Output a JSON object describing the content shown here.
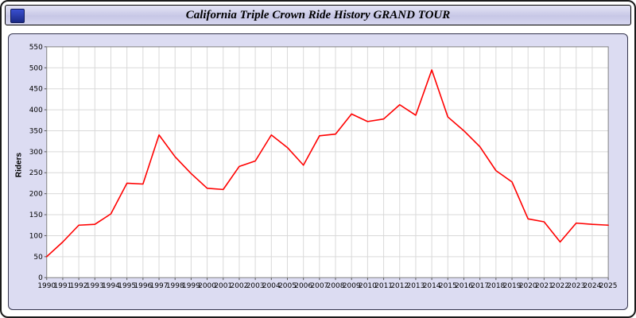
{
  "window": {
    "title": "California Triple Crown Ride History GRAND TOUR"
  },
  "chart_data": {
    "type": "line",
    "title": "California Triple Crown Ride History GRAND TOUR",
    "ylabel": "Riders",
    "xlabel": "",
    "ylim": [
      0,
      550
    ],
    "ytick_step": 50,
    "grid": true,
    "legend": "none",
    "line_color": "#ff0000",
    "plot_bg": "#ffffff",
    "panel_bg": "#dcdcf2",
    "x": [
      1990,
      1991,
      1992,
      1993,
      1994,
      1995,
      1996,
      1997,
      1998,
      1999,
      2000,
      2001,
      2002,
      2003,
      2004,
      2005,
      2006,
      2007,
      2008,
      2009,
      2010,
      2011,
      2012,
      2013,
      2014,
      2015,
      2016,
      2017,
      2018,
      2019,
      2020,
      2021,
      2022,
      2023,
      2024,
      2025
    ],
    "values": [
      50,
      85,
      125,
      127,
      152,
      225,
      223,
      340,
      288,
      248,
      213,
      210,
      265,
      278,
      340,
      310,
      268,
      338,
      342,
      390,
      372,
      378,
      412,
      387,
      495,
      383,
      350,
      312,
      255,
      228,
      140,
      133,
      85,
      130,
      127,
      125
    ]
  }
}
